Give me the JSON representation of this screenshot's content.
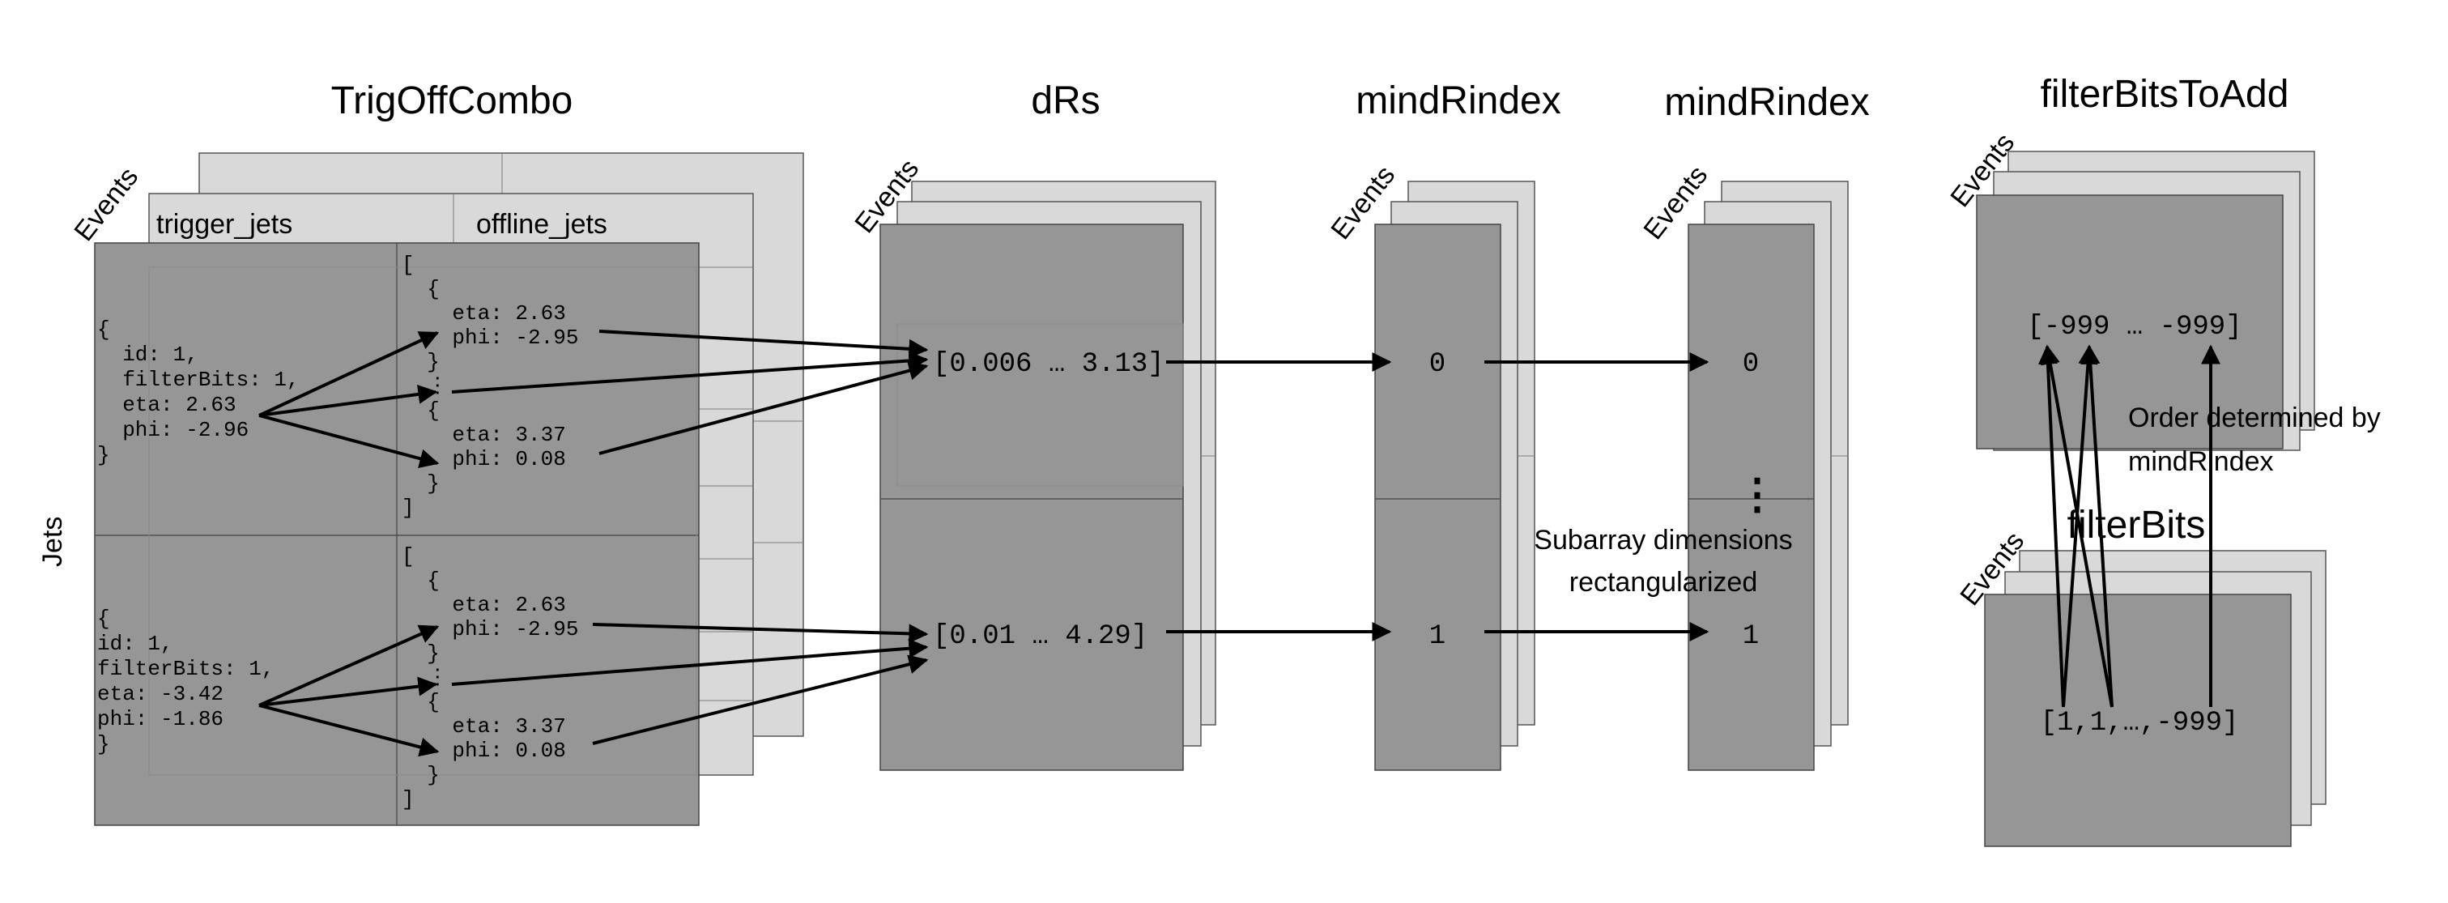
{
  "titles": {
    "trigoffcombo": "TrigOffCombo",
    "drs": "dRs",
    "mindrindex_1": "mindRindex",
    "mindrindex_2": "mindRindex",
    "filterbitstoadd": "filterBitsToAdd",
    "filterbits": "filterBits"
  },
  "axes": {
    "events": "Events",
    "jets": "Jets"
  },
  "columns": {
    "trigger_jets": "trigger_jets",
    "offline_jets": "offline_jets"
  },
  "trigger_jet_rows": [
    [
      "{",
      "  id: 1,",
      "  filterBits: 1,",
      "  eta: 2.63",
      "  phi: -2.96",
      "}"
    ],
    [
      "{",
      "id: 1,",
      "filterBits: 1,",
      "eta: -3.42",
      "phi: -1.86",
      "}"
    ]
  ],
  "offline_jet_rows": [
    [
      "[",
      "  {",
      "    eta: 2.63",
      "    phi: -2.95",
      "  }",
      "  ⋮",
      "  {",
      "    eta: 3.37",
      "    phi: 0.08",
      "  }",
      "]"
    ],
    [
      "[",
      "  {",
      "    eta: 2.63",
      "    phi: -2.95",
      "  }",
      "  ⋮",
      "  {",
      "    eta: 3.37",
      "    phi: 0.08",
      "  }",
      "]"
    ]
  ],
  "drs_values": [
    "[0.006 … 3.13]",
    "[0.01 … 4.29]"
  ],
  "mindrindex_values": [
    "0",
    "1"
  ],
  "mindrindex2_values": [
    "0",
    "1"
  ],
  "vdots": "⋮",
  "subarray_note": [
    "Subarray dimensions",
    "rectangularized"
  ],
  "order_note": [
    "Order determined by",
    "mindRindex"
  ],
  "filterbitstoadd_value": "[-999 … -999]",
  "filterbits_value": "[1,1,…,-999]"
}
